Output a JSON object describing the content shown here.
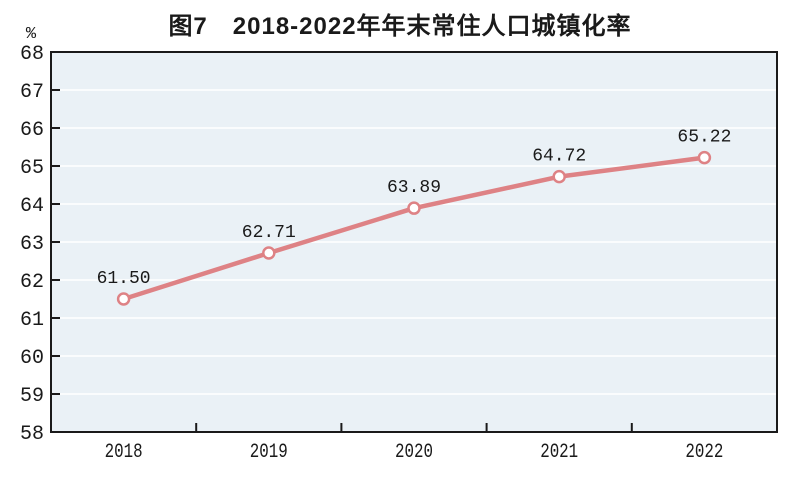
{
  "title": "图7　2018-2022年年末常住人口城镇化率",
  "chart_data": {
    "type": "line",
    "title": "图7　2018-2022年年末常住人口城镇化率",
    "categories": [
      "2018",
      "2019",
      "2020",
      "2021",
      "2022"
    ],
    "values": [
      61.5,
      62.71,
      63.89,
      64.72,
      65.22
    ],
    "data_labels": [
      "61.50",
      "62.71",
      "63.89",
      "64.72",
      "65.22"
    ],
    "xlabel": "",
    "ylabel": "%",
    "ylim": [
      58,
      68
    ],
    "ytick_step": 1,
    "grid": true,
    "legend_position": "none",
    "colors": {
      "line": "#de8285",
      "marker_fill": "#ffffff",
      "plot_background": "#eaf1f6",
      "gridline": "#ffffff",
      "axis": "#1a1a1a",
      "text": "#1a1a1a"
    }
  }
}
